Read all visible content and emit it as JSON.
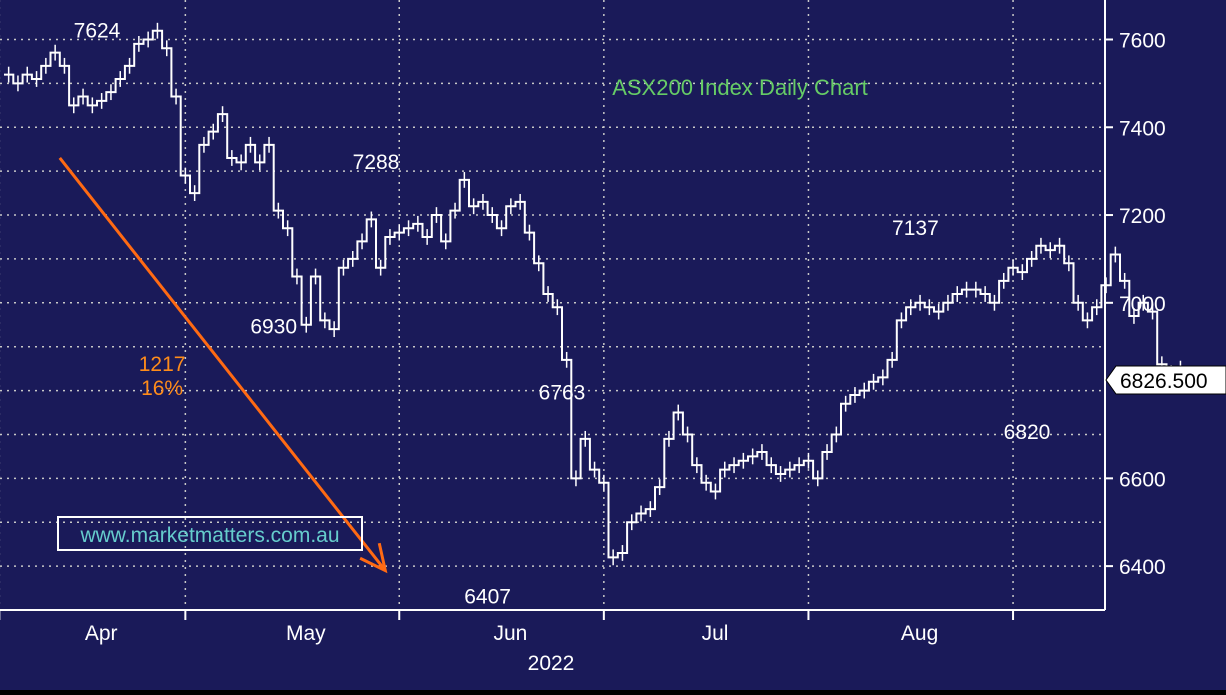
{
  "chart_data": {
    "type": "line",
    "title": "ASX200 Index Daily Chart",
    "ylabel": "",
    "xlabel": "2022",
    "ylim": [
      6300,
      7690
    ],
    "y_ticks": [
      6400,
      6600,
      7000,
      7200,
      7400,
      7600
    ],
    "x_tick_labels": [
      "Apr",
      "May",
      "Jun",
      "Jul",
      "Aug"
    ],
    "x_tick_positions": [
      4,
      26,
      48,
      70,
      92
    ],
    "grid": true,
    "last_price": "6826.500",
    "series": [
      {
        "values": [
          7520,
          7500,
          7520,
          7510,
          7540,
          7570,
          7540,
          7450,
          7470,
          7450,
          7460,
          7480,
          7510,
          7540,
          7590,
          7600,
          7620,
          7580,
          7470,
          7290,
          7250,
          7360,
          7390,
          7430,
          7330,
          7320,
          7360,
          7320,
          7360,
          7210,
          7170,
          7060,
          6950,
          7060,
          6960,
          6940,
          7080,
          7100,
          7140,
          7190,
          7080,
          7150,
          7160,
          7170,
          7180,
          7150,
          7200,
          7140,
          7210,
          7280,
          7220,
          7230,
          7200,
          7170,
          7220,
          7230,
          7160,
          7090,
          7020,
          6990,
          6870,
          6600,
          6690,
          6620,
          6590,
          6420,
          6430,
          6500,
          6520,
          6530,
          6580,
          6690,
          6750,
          6700,
          6630,
          6590,
          6570,
          6620,
          6630,
          6640,
          6650,
          6660,
          6630,
          6610,
          6620,
          6630,
          6640,
          6600,
          6660,
          6700,
          6770,
          6790,
          6800,
          6820,
          6830,
          6870,
          6960,
          6990,
          7000,
          6990,
          6980,
          7000,
          7020,
          7030,
          7030,
          7020,
          7000,
          7050,
          7080,
          7070,
          7100,
          7130,
          7120,
          7130,
          7090,
          7000,
          6960,
          6990,
          7040,
          7110,
          7050,
          6970,
          7000,
          6980,
          6860,
          6840,
          6850,
          6826.5
        ]
      }
    ],
    "annotations": [
      {
        "text": "7624",
        "color": "#ffffff",
        "x": 10,
        "y": 7605,
        "anchor": "middle"
      },
      {
        "text": "7288",
        "color": "#ffffff",
        "x": 40,
        "y": 7305,
        "anchor": "middle"
      },
      {
        "text": "6930",
        "color": "#ffffff",
        "x": 29,
        "y": 6930,
        "anchor": "middle"
      },
      {
        "text": "6763",
        "color": "#ffffff",
        "x": 60,
        "y": 6780,
        "anchor": "middle"
      },
      {
        "text": "6407",
        "color": "#ffffff",
        "x": 52,
        "y": 6315,
        "anchor": "middle"
      },
      {
        "text": "7137",
        "color": "#ffffff",
        "x": 98,
        "y": 7155,
        "anchor": "middle"
      },
      {
        "text": "6820",
        "color": "#ffffff",
        "x": 110,
        "y": 6690,
        "anchor": "middle"
      },
      {
        "text": "1217",
        "color": "#ff8c1a",
        "x": 17,
        "y": 6845,
        "anchor": "middle"
      },
      {
        "text": "16%",
        "color": "#ff8c1a",
        "x": 17,
        "y": 6790,
        "anchor": "middle"
      }
    ],
    "arrow": {
      "from": [
        6,
        7330
      ],
      "to": [
        41,
        6390
      ],
      "color": "#ff6a13"
    },
    "watermark": "www.marketmatters.com.au",
    "colors": {
      "background": "#1a1a59",
      "grid": "#c8c8c8",
      "price": "#ffffff",
      "title": "#66cc66",
      "watermark": "#66cccc",
      "arrow": "#ff6a13"
    }
  }
}
